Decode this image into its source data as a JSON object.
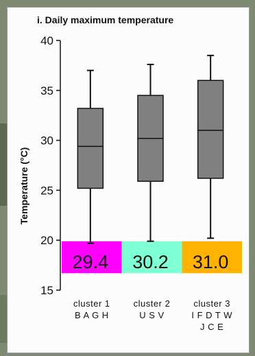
{
  "background_colors": {
    "outer": "#7f8a73",
    "panel": "#fcfcfc"
  },
  "chart_data": {
    "type": "box",
    "title": "i. Daily maximum temperature",
    "ylabel": "Temperature (°C)",
    "xlabel": "",
    "ylim": [
      15,
      40
    ],
    "yticks": [
      15,
      20,
      25,
      30,
      35,
      40
    ],
    "grid": false,
    "categories": [
      {
        "line1": "cluster 1",
        "line2": "B A G H",
        "line3": ""
      },
      {
        "line1": "cluster 2",
        "line2": "U S V",
        "line3": ""
      },
      {
        "line1": "cluster 3",
        "line2": "I F D T W",
        "line3": "J C E"
      }
    ],
    "boxes": [
      {
        "whisker_low": 19.7,
        "q1": 25.2,
        "median": 29.4,
        "q3": 33.2,
        "whisker_high": 37.0
      },
      {
        "whisker_low": 19.9,
        "q1": 25.9,
        "median": 30.2,
        "q3": 34.5,
        "whisker_high": 37.6
      },
      {
        "whisker_low": 20.2,
        "q1": 26.2,
        "median": 31.0,
        "q3": 36.0,
        "whisker_high": 38.5
      }
    ],
    "box_color": "#808080",
    "median_labels": [
      {
        "text": "29.4",
        "color": "#ff00ff"
      },
      {
        "text": "30.2",
        "color": "#7fffd4"
      },
      {
        "text": "31.0",
        "color": "#ffb300"
      }
    ]
  }
}
